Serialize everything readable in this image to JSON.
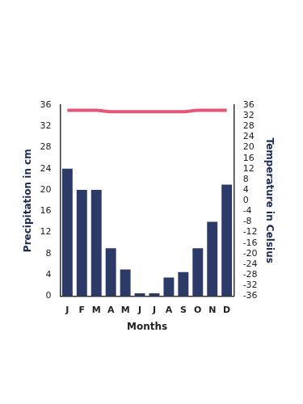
{
  "chart_data": {
    "type": "bar",
    "x_label": "Months",
    "y_label": "Precipitation in cm",
    "y2_label": "Temperature in Celsius",
    "categories": [
      "J",
      "F",
      "M",
      "A",
      "M",
      "J",
      "J",
      "A",
      "S",
      "O",
      "N",
      "D"
    ],
    "series": [
      {
        "type": "bar",
        "color": "#2b3a67",
        "values": [
          24,
          20,
          20,
          9,
          5,
          0.5,
          0.5,
          3.5,
          4.5,
          9,
          14,
          21
        ]
      },
      {
        "type": "line",
        "axis": "y2",
        "color": "#e4557a",
        "line_style": "solid",
        "marker": "none",
        "values": [
          34,
          34,
          34,
          33.5,
          33.5,
          33.5,
          33.5,
          33.5,
          33.5,
          34,
          34,
          34
        ]
      }
    ],
    "ylim": [
      0,
      36
    ],
    "yticks": [
      0,
      4,
      8,
      12,
      16,
      20,
      24,
      28,
      32,
      36
    ],
    "y2lim": [
      -36,
      36
    ],
    "y2ticks": [
      -36,
      -32,
      -28,
      -24,
      -20,
      -16,
      -12,
      -8,
      -4,
      0,
      4,
      8,
      12,
      16,
      20,
      24,
      28,
      32,
      36
    ],
    "grid": false
  }
}
